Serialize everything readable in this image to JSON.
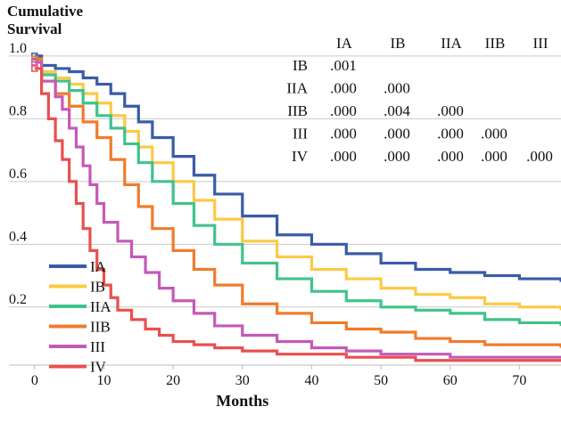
{
  "chart_data": {
    "type": "line",
    "step": true,
    "ylabel_lines": [
      "Cumulative",
      "Survival"
    ],
    "xlabel": "Months",
    "xlim": [
      -5,
      76
    ],
    "ylim": [
      0.015,
      1.045
    ],
    "xticks": [
      0,
      10,
      20,
      30,
      40,
      50,
      60,
      70
    ],
    "xtick_labels": [
      "0",
      "10",
      "20",
      "30",
      "40",
      "50",
      "60",
      "70"
    ],
    "yticks": [
      1.0,
      0.8,
      0.6,
      0.4,
      0.2
    ],
    "ytick_labels": [
      "1.0",
      "0.8",
      "0.6",
      "0.4",
      "0.2"
    ],
    "grid": "horizontal",
    "legend_position": "bottom-left",
    "series": [
      {
        "name": "IA",
        "color": "#3a5ba8",
        "x": [
          0,
          1,
          3,
          5,
          7,
          9,
          11,
          13,
          15,
          17,
          20,
          23,
          26,
          30,
          35,
          40,
          45,
          50,
          55,
          60,
          65,
          70,
          76
        ],
        "y": [
          1.0,
          0.97,
          0.96,
          0.95,
          0.93,
          0.91,
          0.88,
          0.84,
          0.79,
          0.74,
          0.68,
          0.62,
          0.56,
          0.49,
          0.43,
          0.4,
          0.37,
          0.34,
          0.32,
          0.31,
          0.3,
          0.29,
          0.28
        ]
      },
      {
        "name": "IB",
        "color": "#fbc943",
        "x": [
          0,
          1,
          3,
          5,
          7,
          9,
          11,
          13,
          15,
          17,
          20,
          23,
          26,
          30,
          35,
          40,
          45,
          50,
          55,
          60,
          65,
          70,
          76
        ],
        "y": [
          0.99,
          0.95,
          0.93,
          0.91,
          0.88,
          0.85,
          0.81,
          0.76,
          0.71,
          0.66,
          0.6,
          0.54,
          0.48,
          0.41,
          0.36,
          0.32,
          0.29,
          0.26,
          0.24,
          0.23,
          0.21,
          0.2,
          0.19
        ]
      },
      {
        "name": "IIA",
        "color": "#3fc38c",
        "x": [
          0,
          1,
          3,
          5,
          7,
          9,
          11,
          13,
          15,
          17,
          20,
          23,
          26,
          30,
          35,
          40,
          45,
          50,
          55,
          60,
          65,
          70,
          76
        ],
        "y": [
          0.99,
          0.94,
          0.92,
          0.89,
          0.85,
          0.81,
          0.77,
          0.72,
          0.66,
          0.6,
          0.53,
          0.46,
          0.4,
          0.34,
          0.29,
          0.25,
          0.22,
          0.2,
          0.19,
          0.18,
          0.16,
          0.15,
          0.14
        ]
      },
      {
        "name": "IIB",
        "color": "#f07c2b",
        "x": [
          0,
          1,
          3,
          5,
          7,
          9,
          11,
          13,
          15,
          17,
          20,
          23,
          26,
          30,
          35,
          40,
          45,
          50,
          55,
          60,
          65,
          70,
          76
        ],
        "y": [
          0.99,
          0.92,
          0.88,
          0.84,
          0.79,
          0.74,
          0.67,
          0.59,
          0.52,
          0.45,
          0.38,
          0.32,
          0.27,
          0.21,
          0.18,
          0.15,
          0.13,
          0.12,
          0.1,
          0.09,
          0.08,
          0.08,
          0.07
        ]
      },
      {
        "name": "III",
        "color": "#c45ab7",
        "x": [
          0,
          1,
          3,
          4,
          5,
          6,
          7,
          8,
          9,
          10,
          12,
          14,
          16,
          18,
          20,
          23,
          26,
          30,
          35,
          40,
          45,
          50,
          55,
          60,
          65,
          70,
          76
        ],
        "y": [
          0.98,
          0.92,
          0.87,
          0.83,
          0.77,
          0.71,
          0.65,
          0.59,
          0.53,
          0.47,
          0.41,
          0.36,
          0.31,
          0.26,
          0.22,
          0.18,
          0.14,
          0.11,
          0.09,
          0.07,
          0.06,
          0.05,
          0.05,
          0.04,
          0.04,
          0.04,
          0.04
        ]
      },
      {
        "name": "IV",
        "color": "#e8504f",
        "x": [
          0,
          1,
          2,
          3,
          4,
          5,
          6,
          7,
          8,
          9,
          10,
          11,
          12,
          14,
          16,
          18,
          20,
          23,
          26,
          30,
          35,
          40,
          45,
          50,
          55,
          60,
          65,
          70,
          76
        ],
        "y": [
          0.96,
          0.88,
          0.8,
          0.73,
          0.67,
          0.6,
          0.53,
          0.45,
          0.38,
          0.32,
          0.27,
          0.23,
          0.19,
          0.16,
          0.13,
          0.11,
          0.09,
          0.08,
          0.07,
          0.06,
          0.05,
          0.05,
          0.04,
          0.04,
          0.03,
          0.03,
          0.03,
          0.03,
          0.03
        ]
      }
    ],
    "pvalue_table": {
      "columns": [
        "IA",
        "IB",
        "IIA",
        "IIB",
        "III"
      ],
      "rows": [
        {
          "label": "IB",
          "values": [
            ".001",
            "",
            "",
            "",
            ""
          ]
        },
        {
          "label": "IIA",
          "values": [
            ".000",
            ".000",
            "",
            "",
            ""
          ]
        },
        {
          "label": "IIB",
          "values": [
            ".000",
            ".004",
            ".000",
            "",
            ""
          ]
        },
        {
          "label": "III",
          "values": [
            ".000",
            ".000",
            ".000",
            ".000",
            ""
          ]
        },
        {
          "label": "IV",
          "values": [
            ".000",
            ".000",
            ".000",
            ".000",
            ".000"
          ]
        }
      ]
    }
  }
}
